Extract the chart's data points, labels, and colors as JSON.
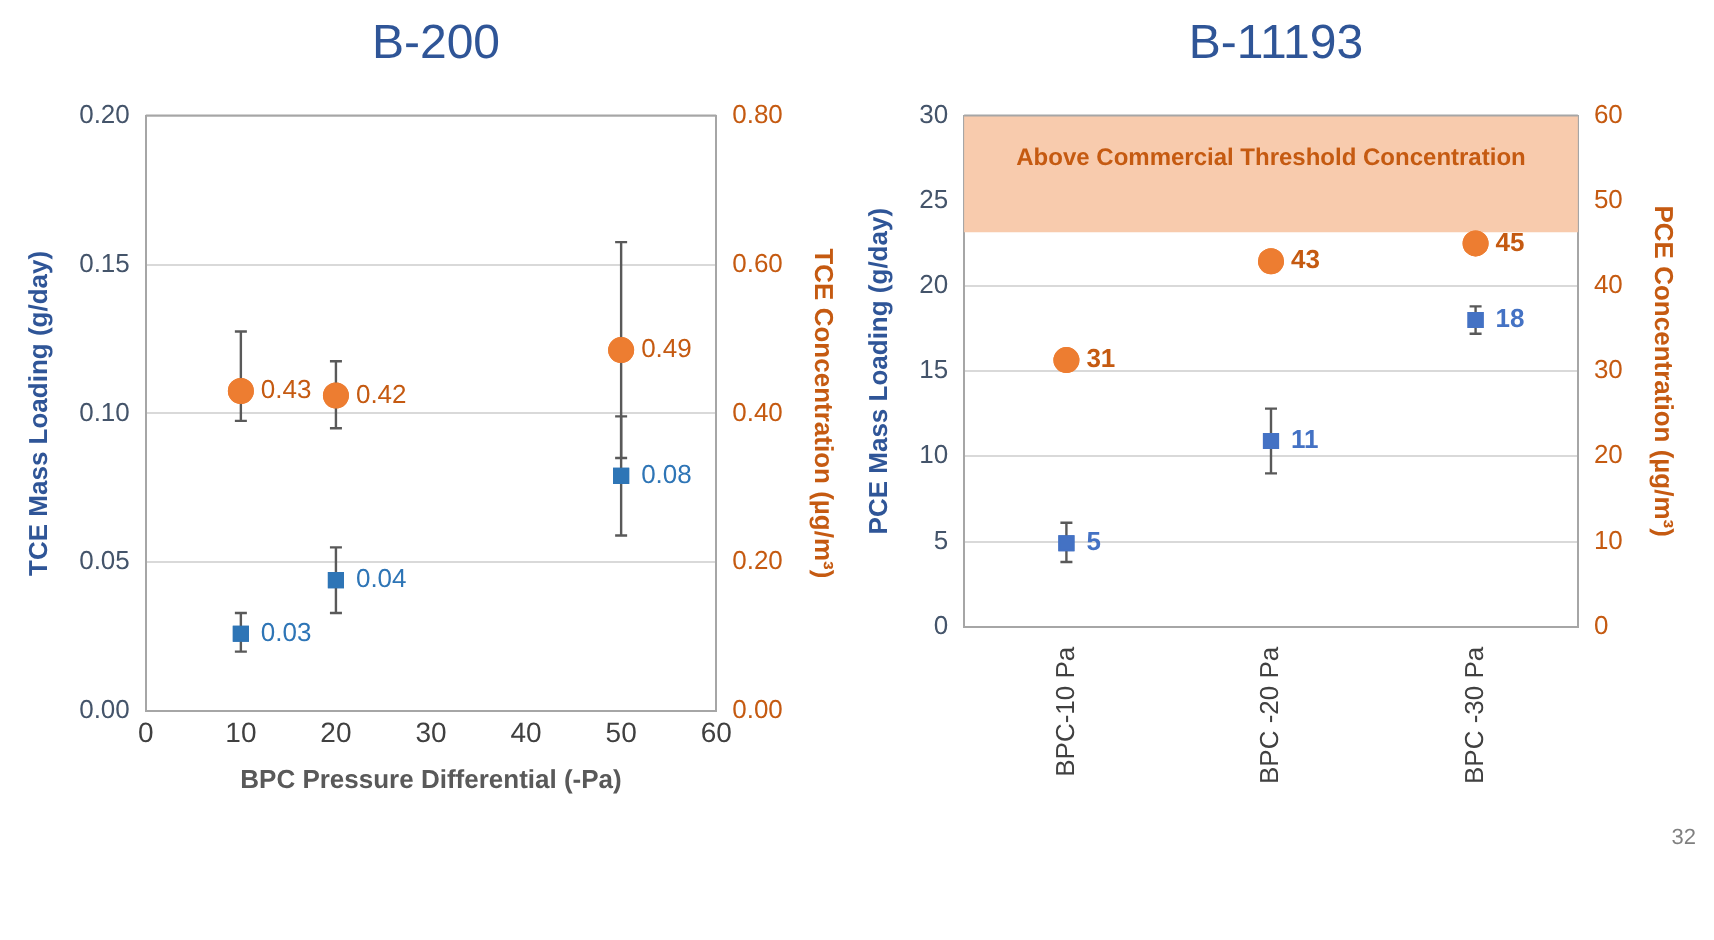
{
  "chart_data": [
    {
      "type": "scatter",
      "title": "B-200",
      "xlabel": "BPC Pressure Differential (-Pa)",
      "ylabel": "TCE Mass Loading (g/day)",
      "y2label": "TCE Concentration (µg/m³)",
      "xlim": [
        0,
        60
      ],
      "xticks": [
        0,
        10,
        20,
        30,
        40,
        50,
        60
      ],
      "ylim": [
        0,
        0.2
      ],
      "yticks": [
        {
          "value": 0,
          "label": "0.00"
        },
        {
          "value": 0.05,
          "label": "0.05"
        },
        {
          "value": 0.1,
          "label": "0.10"
        },
        {
          "value": 0.15,
          "label": "0.15"
        },
        {
          "value": 0.2,
          "label": "0.20"
        }
      ],
      "y2lim": [
        0,
        0.8
      ],
      "y2ticks": [
        {
          "value": 0,
          "label": "0.00"
        },
        {
          "value": 0.2,
          "label": "0.20"
        },
        {
          "value": 0.4,
          "label": "0.40"
        },
        {
          "value": 0.6,
          "label": "0.60"
        },
        {
          "value": 0.8,
          "label": "0.80"
        }
      ],
      "grid": "y",
      "legend": false,
      "series": [
        {
          "color": "#2e75b6",
          "marker": "square",
          "x": [
            10,
            20,
            50
          ],
          "values": [
            0.026,
            0.044,
            0.079
          ],
          "errors": [
            [
              0.02,
              0.033
            ],
            [
              0.033,
              0.055
            ],
            [
              0.059,
              0.099
            ]
          ],
          "value_labels": [
            "0.03",
            "0.04",
            "0.08"
          ]
        },
        {
          "color": "#ed7d31",
          "marker": "circle",
          "axis": "y2",
          "x": [
            10,
            20,
            50
          ],
          "values": [
            0.43,
            0.424,
            0.485
          ],
          "errors": [
            [
              0.39,
              0.51
            ],
            [
              0.38,
              0.47
            ],
            [
              0.34,
              0.63
            ]
          ],
          "value_labels": [
            "0.43",
            "0.42",
            "0.49"
          ]
        }
      ]
    },
    {
      "type": "scatter",
      "title": "B-11193",
      "categories": [
        "BPC-10 Pa",
        "BPC -20 Pa",
        "BPC -30 Pa"
      ],
      "ylabel": "PCE Mass Loading (g/day)",
      "y2label": "PCE Concentration (µg/m³)",
      "ylim": [
        0,
        30
      ],
      "yticks": [
        0,
        5,
        10,
        15,
        20,
        25,
        30
      ],
      "y2lim": [
        0,
        60
      ],
      "y2ticks": [
        0,
        10,
        20,
        30,
        40,
        50,
        60
      ],
      "grid": "y",
      "legend": false,
      "bands": [
        {
          "axis": "y2",
          "from": 46.3,
          "to": 60,
          "label": "Above Commercial Threshold Concentration",
          "color": "#f8cbad"
        }
      ],
      "annotations": [
        "32"
      ],
      "series": [
        {
          "color": "#4472c4",
          "marker": "square",
          "values": [
            4.9,
            10.9,
            18.0
          ],
          "errors": [
            [
              3.8,
              6.1
            ],
            [
              9.0,
              12.8
            ],
            [
              17.2,
              18.8
            ]
          ],
          "value_labels": [
            "5",
            "11",
            "18"
          ]
        },
        {
          "color": "#ed7d31",
          "marker": "circle",
          "axis": "y2",
          "values": [
            31.3,
            42.9,
            45.0
          ],
          "value_labels": [
            "31",
            "43",
            "45"
          ]
        }
      ]
    }
  ]
}
